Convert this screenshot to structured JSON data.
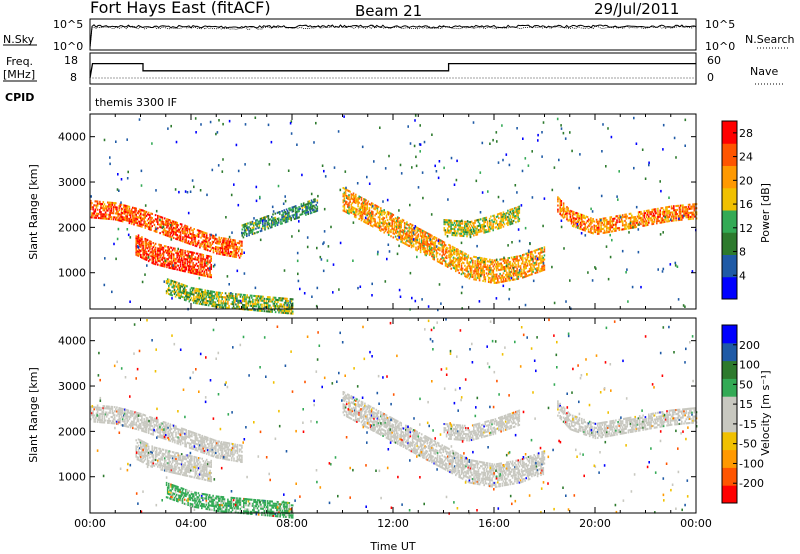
{
  "header": {
    "station": "Fort Hays East (fitACF)",
    "beam": "Beam 21",
    "date": "29/Jul/2011"
  },
  "noise_panel": {
    "left_label": "N.Sky",
    "left_ticks": [
      "10^5",
      "10^0"
    ],
    "right_label": "N.Search",
    "right_ticks": [
      "10^5",
      "10^0"
    ]
  },
  "freq_panel": {
    "left_label": "Freq.",
    "left_unit": "[MHz]",
    "left_ticks": [
      "18",
      "8"
    ],
    "right_label": "Nave",
    "right_ticks": [
      "60",
      "0"
    ]
  },
  "cpid": {
    "label": "CPID",
    "program": "themis 3300 IF"
  },
  "colors": {
    "power_scale": [
      "#0000ff",
      "#1f5aa6",
      "#2d7a2d",
      "#33aa55",
      "#f0c000",
      "#ff9900",
      "#ff5500",
      "#ff0000"
    ],
    "velocity_scale": [
      "#ff0000",
      "#ff5500",
      "#ff9900",
      "#f0c000",
      "#c8c8c0",
      "#c8c8c0",
      "#33aa55",
      "#2d7a2d",
      "#1f5aa6",
      "#0000ff"
    ],
    "ground_scatter": "#c8c8c0"
  },
  "chart_data": [
    {
      "type": "line",
      "panel": "noise",
      "x": [
        0,
        0.1,
        2,
        6,
        10,
        14,
        18,
        22,
        24
      ],
      "series": [
        {
          "values": [
            1,
            100000,
            80000,
            60000,
            90000,
            70000,
            80000,
            90000,
            100000
          ]
        },
        {
          "values": [
            1,
            50000,
            40000,
            30000,
            50000,
            40000,
            40000,
            50000,
            60000
          ]
        }
      ],
      "ylim": [
        1,
        100000
      ],
      "log": true
    },
    {
      "type": "line",
      "panel": "frequency",
      "series": [
        {
          "x": [
            0,
            0.1,
            2.1,
            2.1,
            14.2,
            14.2,
            24
          ],
          "values": [
            8,
            16,
            16,
            12,
            12,
            16,
            16
          ]
        },
        {
          "x": [
            0.1,
            24
          ],
          "values": [
            8,
            8
          ]
        }
      ],
      "ylim": [
        8,
        18
      ],
      "right_ylim": [
        0,
        60
      ]
    },
    {
      "type": "heatmap",
      "panel": "power",
      "xlabel": "",
      "ylabel": "Slant Range [km]",
      "xlim": [
        0,
        24
      ],
      "ylim": [
        200,
        4500
      ],
      "yticks": [
        "1000",
        "2000",
        "3000",
        "4000"
      ],
      "colorbar": {
        "label": "Power [dB]",
        "ticks": [
          "4",
          "8",
          "12",
          "16",
          "20",
          "24",
          "28"
        ],
        "range": [
          0,
          30
        ]
      },
      "bands": [
        {
          "times": [
            0,
            1,
            2,
            3,
            4,
            5,
            6
          ],
          "ranges": [
            2400,
            2350,
            2200,
            2000,
            1800,
            1600,
            1500
          ],
          "width": 400,
          "value": 24
        },
        {
          "times": [
            1.8,
            2.5,
            3.2,
            4,
            4.8
          ],
          "ranges": [
            1600,
            1400,
            1300,
            1200,
            1100
          ],
          "width": 450,
          "value": 26
        },
        {
          "times": [
            3,
            4,
            5,
            6,
            7,
            8
          ],
          "ranges": [
            700,
            500,
            400,
            350,
            300,
            250
          ],
          "width": 350,
          "value": 14
        },
        {
          "times": [
            6,
            7,
            8,
            9
          ],
          "ranges": [
            1900,
            2100,
            2300,
            2500
          ],
          "width": 300,
          "value": 10
        },
        {
          "times": [
            10,
            11,
            12,
            13,
            14,
            15,
            16,
            17,
            18
          ],
          "ranges": [
            2600,
            2300,
            2000,
            1700,
            1400,
            1100,
            1000,
            1100,
            1300
          ],
          "width": 500,
          "value": 20
        },
        {
          "times": [
            14,
            15,
            16,
            17
          ],
          "ranges": [
            2000,
            1950,
            2100,
            2300
          ],
          "width": 350,
          "value": 16
        },
        {
          "times": [
            18.5,
            19,
            20,
            21,
            22,
            23,
            24
          ],
          "ranges": [
            2500,
            2200,
            2000,
            2100,
            2200,
            2300,
            2350
          ],
          "width": 350,
          "value": 22
        }
      ]
    },
    {
      "type": "heatmap",
      "panel": "velocity",
      "xlabel": "Time UT",
      "ylabel": "Slant Range [km]",
      "xlim": [
        0,
        24
      ],
      "ylim": [
        200,
        4500
      ],
      "xticks": [
        "00:00",
        "04:00",
        "08:00",
        "12:00",
        "16:00",
        "20:00",
        "00:00"
      ],
      "yticks": [
        "1000",
        "2000",
        "3000",
        "4000"
      ],
      "colorbar": {
        "label": "Velocity [m s⁻¹]",
        "ticks": [
          "200",
          "100",
          "50",
          "15",
          "-15",
          "-50",
          "-100",
          "-200"
        ],
        "range": [
          -250,
          250
        ]
      },
      "bands": [
        {
          "times": [
            0,
            1,
            2,
            3,
            4,
            5,
            6
          ],
          "ranges": [
            2400,
            2350,
            2200,
            2000,
            1800,
            1600,
            1500
          ],
          "width": 400,
          "value": 0
        },
        {
          "times": [
            1.8,
            2.5,
            3.2,
            4,
            4.8
          ],
          "ranges": [
            1600,
            1400,
            1300,
            1200,
            1100
          ],
          "width": 450,
          "value": 0
        },
        {
          "times": [
            3,
            4,
            5,
            6,
            7,
            8
          ],
          "ranges": [
            700,
            500,
            400,
            350,
            300,
            250
          ],
          "width": 350,
          "value": 60
        },
        {
          "times": [
            10,
            11,
            12,
            13,
            14,
            15,
            16,
            17,
            18
          ],
          "ranges": [
            2600,
            2300,
            2000,
            1700,
            1400,
            1100,
            1000,
            1100,
            1300
          ],
          "width": 500,
          "value": 0
        },
        {
          "times": [
            14,
            15,
            16,
            17
          ],
          "ranges": [
            2000,
            1950,
            2100,
            2300
          ],
          "width": 350,
          "value": 0
        },
        {
          "times": [
            18.5,
            19,
            20,
            21,
            22,
            23,
            24
          ],
          "ranges": [
            2500,
            2200,
            2000,
            2100,
            2200,
            2300,
            2350
          ],
          "width": 350,
          "value": 0
        }
      ]
    }
  ]
}
